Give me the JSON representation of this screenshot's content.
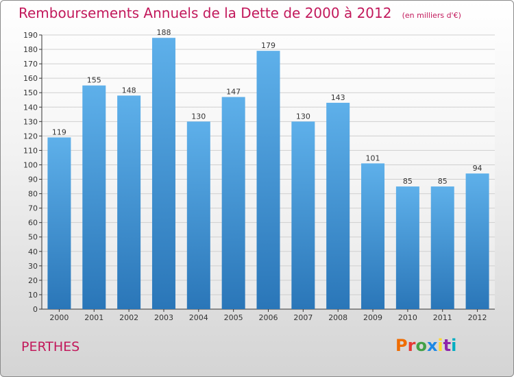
{
  "header": {
    "title": "Remboursements Annuels de la Dette de 2000 à 2012",
    "unit_note": "(en milliers d'€)"
  },
  "footer": {
    "commune": "PERTHES",
    "logo_text": "Proxiti"
  },
  "colors": {
    "bar": "#4a9edb",
    "bar_light": "#5eb0ea",
    "bar_dark": "#2a76b8",
    "title": "#c2185b",
    "axis": "#333333",
    "grid": "#cfcfcf",
    "logo": [
      "#ef6c00",
      "#e53935",
      "#43a047",
      "#1e88e5",
      "#fdd835",
      "#8e24aa",
      "#00acc1"
    ]
  },
  "chart_data": {
    "type": "bar",
    "title": "Remboursements Annuels de la Dette de 2000 à 2012",
    "subtitle": "(en milliers d'€)",
    "xlabel": "",
    "ylabel": "",
    "categories": [
      "2000",
      "2001",
      "2002",
      "2003",
      "2004",
      "2005",
      "2006",
      "2007",
      "2008",
      "2009",
      "2010",
      "2011",
      "2012"
    ],
    "values": [
      119,
      155,
      148,
      188,
      130,
      147,
      179,
      130,
      143,
      101,
      85,
      85,
      94
    ],
    "ylim": [
      0,
      190
    ],
    "ytick_step": 10,
    "grid": true,
    "legend": "none"
  }
}
